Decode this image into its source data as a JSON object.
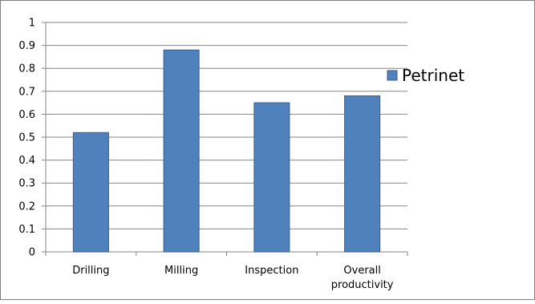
{
  "chart_data": {
    "type": "bar",
    "title": "",
    "xlabel": "",
    "ylabel": "",
    "categories": [
      [
        "Drilling"
      ],
      [
        "Milling"
      ],
      [
        "Inspection"
      ],
      [
        "Overall",
        "productivity"
      ]
    ],
    "series": [
      {
        "name": "Petrinet",
        "values": [
          0.52,
          0.88,
          0.65,
          0.68
        ],
        "color": "#4F81BD",
        "edge_color": "#385D8A"
      }
    ],
    "ylim": [
      0,
      1
    ],
    "yticks": [
      "0",
      "0.1",
      "0.2",
      "0.3",
      "0.4",
      "0.5",
      "0.6",
      "0.7",
      "0.8",
      "0.9",
      "1"
    ],
    "grid": true,
    "legend_position": "right",
    "frame_border": true
  }
}
